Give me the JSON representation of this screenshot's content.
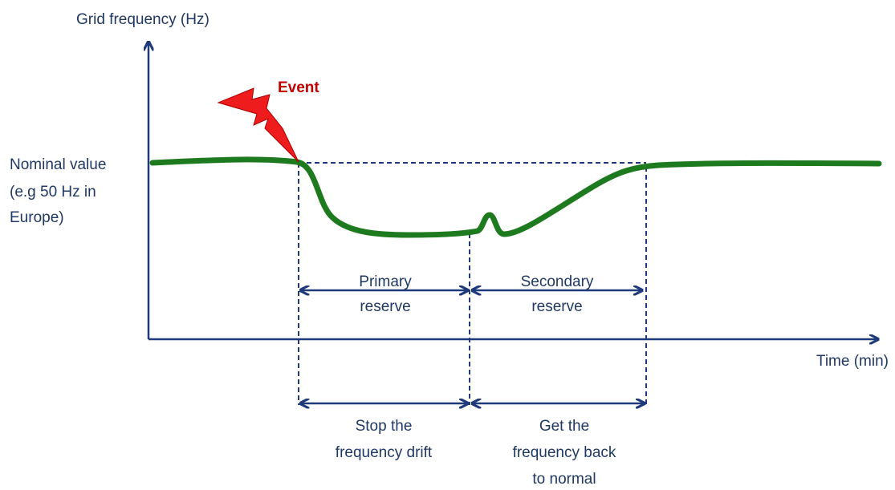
{
  "y_axis": {
    "label": "Grid frequency (Hz)"
  },
  "x_axis": {
    "label": "Time (min)"
  },
  "nominal": {
    "lines": [
      "Nominal value",
      "(e.g 50 Hz in",
      "Europe)"
    ]
  },
  "event": {
    "label": "Event"
  },
  "reserves": [
    {
      "lines": [
        "Primary",
        "reserve"
      ]
    },
    {
      "lines": [
        "Secondary",
        "reserve"
      ]
    }
  ],
  "goals": [
    {
      "lines": [
        "Stop the",
        "frequency drift"
      ]
    },
    {
      "lines": [
        "Get the",
        "frequency back",
        "to normal"
      ]
    }
  ]
}
